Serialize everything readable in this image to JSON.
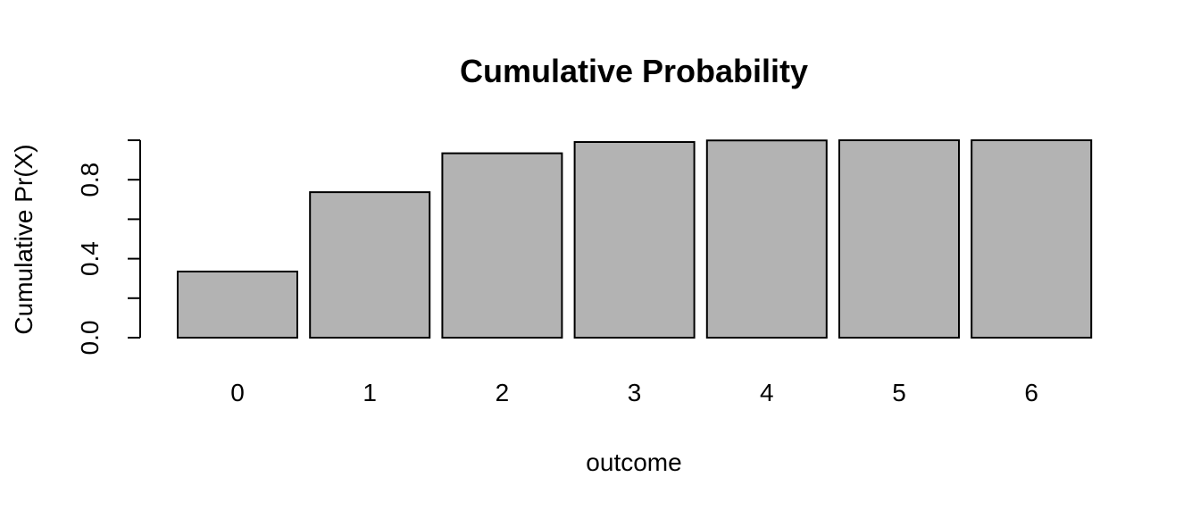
{
  "chart_data": {
    "type": "bar",
    "title": "Cumulative Probability",
    "xlabel": "outcome",
    "ylabel": "Cumulative Pr(X)",
    "categories": [
      "0",
      "1",
      "2",
      "3",
      "4",
      "5",
      "6"
    ],
    "values": [
      0.335,
      0.737,
      0.934,
      0.991,
      0.999,
      1.0,
      1.0
    ],
    "ylim": [
      0,
      1
    ],
    "yticks": [
      0.0,
      0.2,
      0.4,
      0.6,
      0.8,
      1.0
    ],
    "ytick_labels": [
      "0.0",
      "",
      "0.4",
      "",
      "0.8",
      ""
    ],
    "bar_color": "#b3b3b3",
    "bar_edge_color": "#000000",
    "grid": false,
    "legend": "none"
  }
}
